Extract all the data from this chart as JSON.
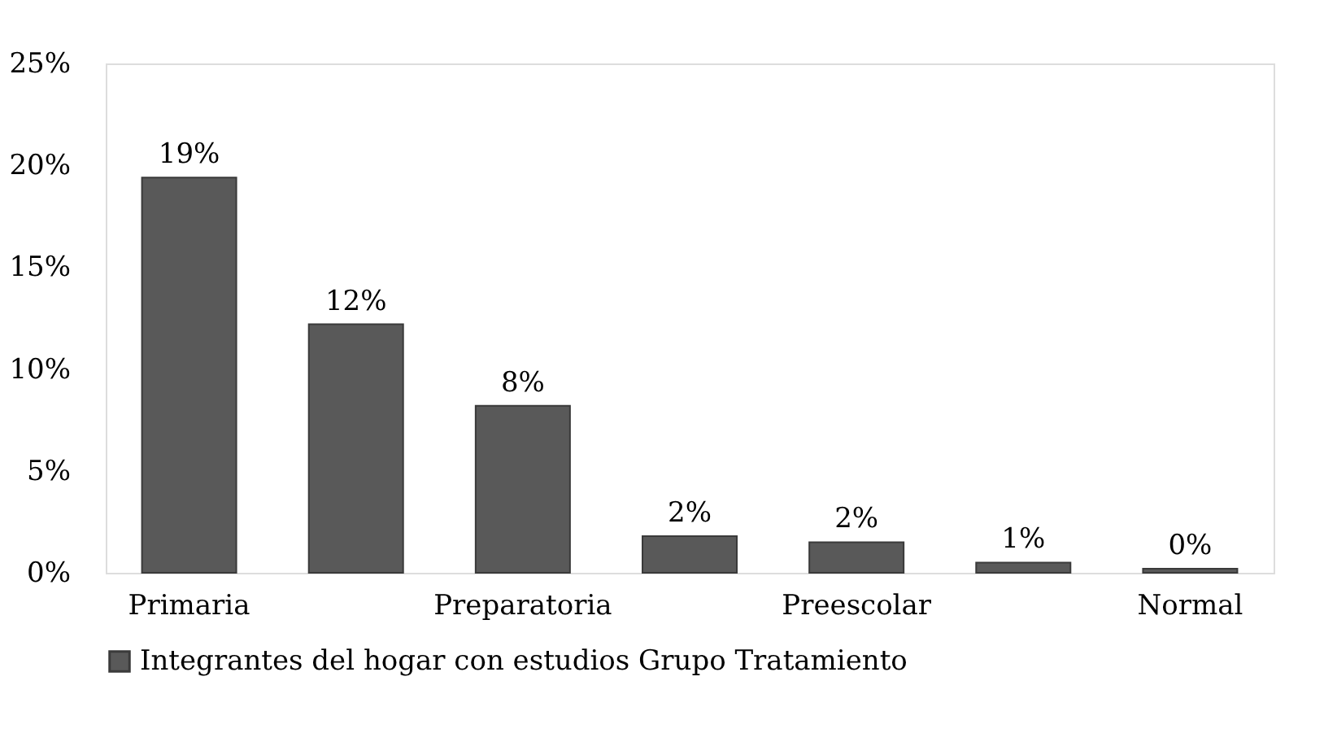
{
  "chart_data": {
    "type": "bar",
    "categories": [
      "Primaria",
      null,
      "Preparatoria",
      null,
      "Preescolar",
      null,
      "Normal"
    ],
    "series": [
      {
        "name": "Integrantes del hogar con estudios Grupo Tratamiento",
        "color": "#595959",
        "values": [
          19.4,
          12.2,
          8.2,
          1.8,
          1.5,
          0.5,
          0.2
        ],
        "value_labels": [
          "19%",
          "12%",
          "8%",
          "2%",
          "2%",
          "1%",
          "0%"
        ]
      }
    ],
    "ylim": [
      0,
      25
    ],
    "yticks": [
      {
        "value": 0,
        "label": "0%"
      },
      {
        "value": 5,
        "label": "5%"
      },
      {
        "value": 10,
        "label": "10%"
      },
      {
        "value": 15,
        "label": "15%"
      },
      {
        "value": 20,
        "label": "20%"
      },
      {
        "value": 25,
        "label": "25%"
      }
    ],
    "grid": false,
    "legend": "bottom"
  }
}
